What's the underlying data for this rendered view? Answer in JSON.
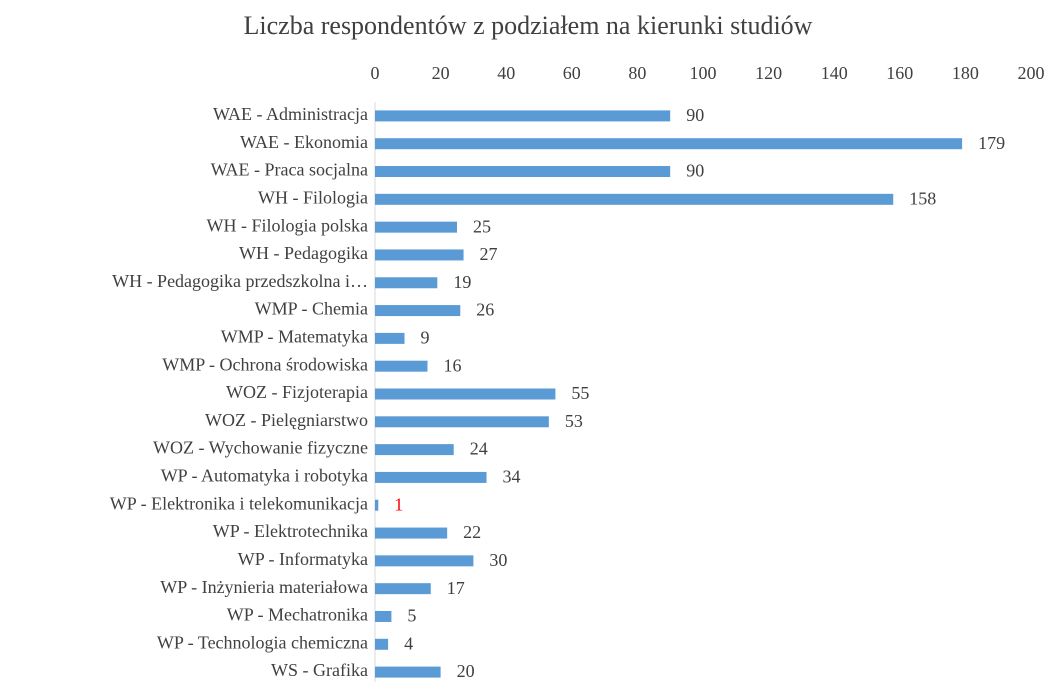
{
  "chart_data": {
    "type": "bar",
    "orientation": "horizontal",
    "title": "Liczba respondentów z podziałem na kierunki studiów",
    "categories": [
      "WAE - Administracja",
      "WAE - Ekonomia",
      "WAE - Praca socjalna",
      "WH - Filologia",
      "WH - Filologia polska",
      "WH - Pedagogika",
      "WH - Pedagogika przedszkolna i…",
      "WMP - Chemia",
      "WMP - Matematyka",
      "WMP - Ochrona środowiska",
      "WOZ - Fizjoterapia",
      "WOZ - Pielęgniarstwo",
      "WOZ - Wychowanie fizyczne",
      "WP - Automatyka i robotyka",
      "WP - Elektronika i telekomunikacja",
      "WP - Elektrotechnika",
      "WP - Informatyka",
      "WP - Inżynieria materiałowa",
      "WP - Mechatronika",
      "WP - Technologia chemiczna",
      "WS - Grafika"
    ],
    "values": [
      90,
      179,
      90,
      158,
      25,
      27,
      19,
      26,
      9,
      16,
      55,
      53,
      24,
      34,
      1,
      22,
      30,
      17,
      5,
      4,
      20
    ],
    "color": "#5b9bd5",
    "value_label_colors": [
      "#404040",
      "#404040",
      "#404040",
      "#404040",
      "#404040",
      "#404040",
      "#404040",
      "#404040",
      "#404040",
      "#404040",
      "#404040",
      "#404040",
      "#404040",
      "#404040",
      "#ff0000",
      "#404040",
      "#404040",
      "#404040",
      "#404040",
      "#404040",
      "#404040"
    ],
    "xlim": [
      0,
      200
    ],
    "xticks": [
      0,
      20,
      40,
      60,
      80,
      100,
      120,
      140,
      160,
      180,
      200
    ],
    "xaxis_position": "top",
    "grid": false
  }
}
